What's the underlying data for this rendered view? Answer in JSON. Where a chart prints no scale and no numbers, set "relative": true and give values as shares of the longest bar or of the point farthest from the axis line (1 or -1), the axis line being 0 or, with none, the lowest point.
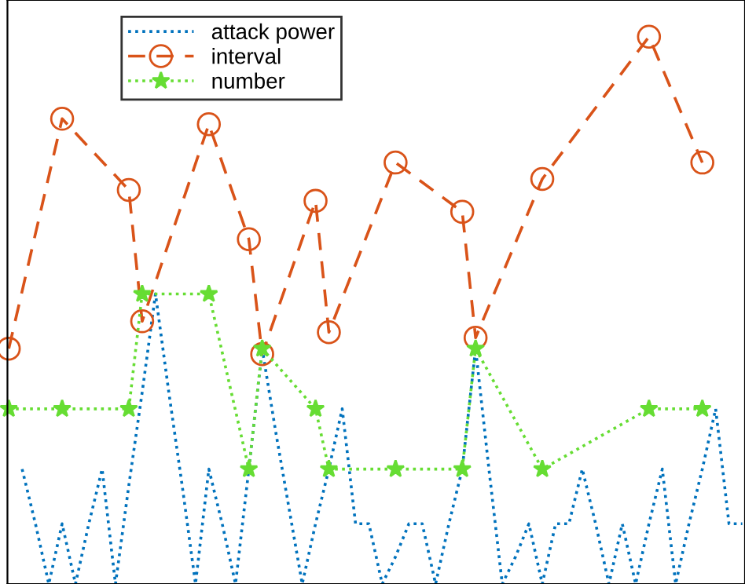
{
  "chart_data": {
    "type": "line",
    "relative": true,
    "grid": false,
    "legend": "top left",
    "categories": [
      null,
      null,
      null,
      null,
      null,
      null,
      null,
      null,
      null,
      null,
      null,
      null,
      null,
      null,
      null,
      null,
      null,
      null,
      null,
      null,
      null,
      null,
      null,
      null,
      null,
      null,
      null,
      null,
      null,
      null,
      null,
      null,
      null,
      null,
      null,
      null,
      null,
      null,
      null,
      null,
      null,
      null,
      null,
      null,
      null,
      null,
      null,
      null,
      null,
      null,
      null,
      null,
      null,
      null,
      null,
      null
    ],
    "series": [
      {
        "name": "attack power",
        "color": "#0072bd",
        "line_style": "dotted",
        "marker": "none",
        "values": [
          null,
          0.21,
          0.11,
          0,
          0.11,
          0,
          0.11,
          0.21,
          0,
          0.18,
          0.35,
          0.53,
          0.35,
          0.18,
          0,
          0.21,
          0.11,
          0,
          0.21,
          0.43,
          0.28,
          0.14,
          0,
          0.11,
          0.21,
          0.32,
          0.11,
          0.11,
          0,
          0.05,
          0.11,
          0.11,
          0,
          0.11,
          0.21,
          0.43,
          0.21,
          0,
          0.05,
          0.11,
          0,
          0.11,
          0.11,
          0.21,
          0.11,
          0,
          0.11,
          0,
          0.11,
          0.21,
          0,
          0.11,
          0.21,
          0.32,
          0.11,
          0.11
        ]
      },
      {
        "name": "interval",
        "color": "#d95319",
        "line_style": "dashed",
        "marker": "circle",
        "values": [
          0.43,
          null,
          null,
          null,
          0.85,
          null,
          null,
          null,
          null,
          0.72,
          0.48,
          null,
          null,
          null,
          null,
          0.84,
          null,
          null,
          0.63,
          0.42,
          null,
          null,
          null,
          0.7,
          0.46,
          null,
          null,
          null,
          null,
          0.77,
          null,
          null,
          null,
          null,
          0.68,
          0.45,
          null,
          null,
          null,
          null,
          0.74,
          null,
          null,
          null,
          null,
          null,
          null,
          null,
          1,
          null,
          null,
          null,
          0.77,
          null,
          null,
          null
        ]
      },
      {
        "name": "number",
        "color": "#66dd33",
        "line_style": "dotted",
        "marker": "star",
        "values": [
          0.32,
          null,
          null,
          null,
          0.32,
          null,
          null,
          null,
          null,
          0.32,
          0.53,
          null,
          null,
          null,
          null,
          0.53,
          null,
          null,
          0.21,
          0.43,
          null,
          null,
          null,
          0.32,
          0.21,
          null,
          null,
          null,
          null,
          0.21,
          null,
          null,
          null,
          null,
          0.21,
          0.43,
          null,
          null,
          null,
          null,
          0.21,
          null,
          null,
          null,
          null,
          null,
          null,
          null,
          0.32,
          null,
          null,
          null,
          0.32,
          null,
          null,
          null
        ]
      }
    ]
  }
}
